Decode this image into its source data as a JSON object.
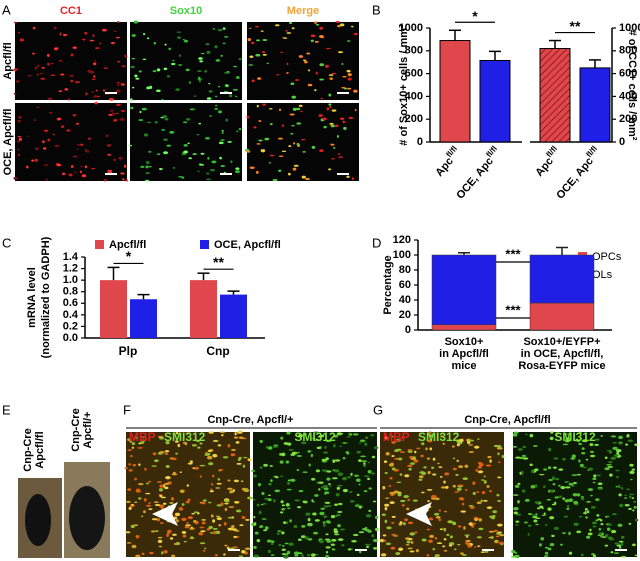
{
  "panel_a": {
    "label": "A",
    "columns": [
      "CC1",
      "Sox10",
      "Merge"
    ],
    "column_colors": [
      "#e0242a",
      "#3fd23f",
      "#f2a33a"
    ],
    "rows": [
      "Apcfl/fl",
      "OCE, Apcfl/fl"
    ]
  },
  "chart_data": [
    {
      "type": "bar",
      "panel_label": "B",
      "y_label": "# of Sox10+ cells / mm²",
      "y_axis_side": "left",
      "hatched": false,
      "categories": [
        "Apc",
        "OCE, Apc"
      ],
      "category_superscripts": [
        "fl/fl",
        "fl/fl"
      ],
      "values": [
        890,
        715
      ],
      "errors": [
        90,
        80
      ],
      "colors": [
        "#e0474c",
        "#1f1fe6"
      ],
      "ylim": [
        0,
        1000
      ],
      "yticks": [
        0,
        200,
        400,
        600,
        800,
        1000
      ],
      "significance": "*"
    },
    {
      "type": "bar",
      "y_label": "# of CC1+ cells / mm²",
      "y_axis_side": "right",
      "hatched": true,
      "categories": [
        "Apc",
        "OCE, Apc"
      ],
      "category_superscripts": [
        "fl/fl",
        "fl/fl"
      ],
      "values": [
        820,
        650
      ],
      "errors": [
        70,
        70
      ],
      "colors": [
        "#e0474c",
        "#1f1fe6"
      ],
      "ylim": [
        0,
        1000
      ],
      "yticks": [
        0,
        200,
        400,
        600,
        800,
        1000
      ],
      "significance": "**"
    },
    {
      "type": "grouped_bar",
      "panel_label": "C",
      "y_label": [
        "mRNA level",
        "(normalized to GADPH)"
      ],
      "categories": [
        "Plp",
        "Cnp"
      ],
      "series": [
        {
          "name": "Apcfl/fl",
          "color": "#e0474c",
          "values": [
            1.0,
            1.0
          ],
          "errors": [
            0.22,
            0.12
          ]
        },
        {
          "name": "OCE, Apcfl/fl",
          "color": "#1f1fe6",
          "values": [
            0.67,
            0.75
          ],
          "errors": [
            0.08,
            0.06
          ]
        }
      ],
      "ylim": [
        0,
        1.4
      ],
      "yticks": [
        {
          "value": 0,
          "label": "0.0"
        },
        {
          "value": 0.2,
          "label": "0.2"
        },
        {
          "value": 0.4,
          "label": "0.4"
        },
        {
          "value": 0.6,
          "label": "0.6"
        },
        {
          "value": 0.8,
          "label": "0.8"
        },
        {
          "value": 1,
          "label": "1.0"
        },
        {
          "value": 1.2,
          "label": "1.2"
        },
        {
          "value": 1.4,
          "label": "1.4"
        }
      ],
      "significance": [
        "*",
        "**"
      ]
    },
    {
      "type": "stacked_bar",
      "panel_label": "D",
      "y_label": "Percentage",
      "categories": [
        [
          "Sox10+",
          "in Apcfl/fl",
          "mice"
        ],
        [
          "Sox10+/EYFP+",
          "in OCE, Apcfl/fl,",
          "Rosa-EYFP mice"
        ]
      ],
      "series": [
        {
          "name": "OPCs",
          "color": "#e0474c",
          "values": [
            7,
            36
          ],
          "errors": [
            2,
            9
          ]
        },
        {
          "name": "OLs",
          "color": "#1f1fe6",
          "values": [
            93,
            64
          ],
          "errors": [
            3,
            10
          ]
        }
      ],
      "ylim": [
        0,
        120
      ],
      "yticks": [
        0,
        20,
        40,
        60,
        80,
        100,
        120
      ],
      "significance": [
        "***",
        "***"
      ]
    }
  ],
  "panel_e": {
    "label": "E",
    "mice": [
      [
        "Cnp-Cre",
        "Apcfl/fl"
      ],
      [
        "Cnp-Cre",
        "Apcfl/+"
      ]
    ]
  },
  "panel_f": {
    "label": "F",
    "title": "Cnp-Cre, Apcfl/+",
    "left_labels": [
      "MBP",
      "SMI312"
    ],
    "right_label": "SMI312"
  },
  "panel_g": {
    "label": "G",
    "title": "Cnp-Cre, Apcfl/fl",
    "left_labels": [
      "MBP",
      "SMI312"
    ],
    "right_label": "SMI312"
  }
}
